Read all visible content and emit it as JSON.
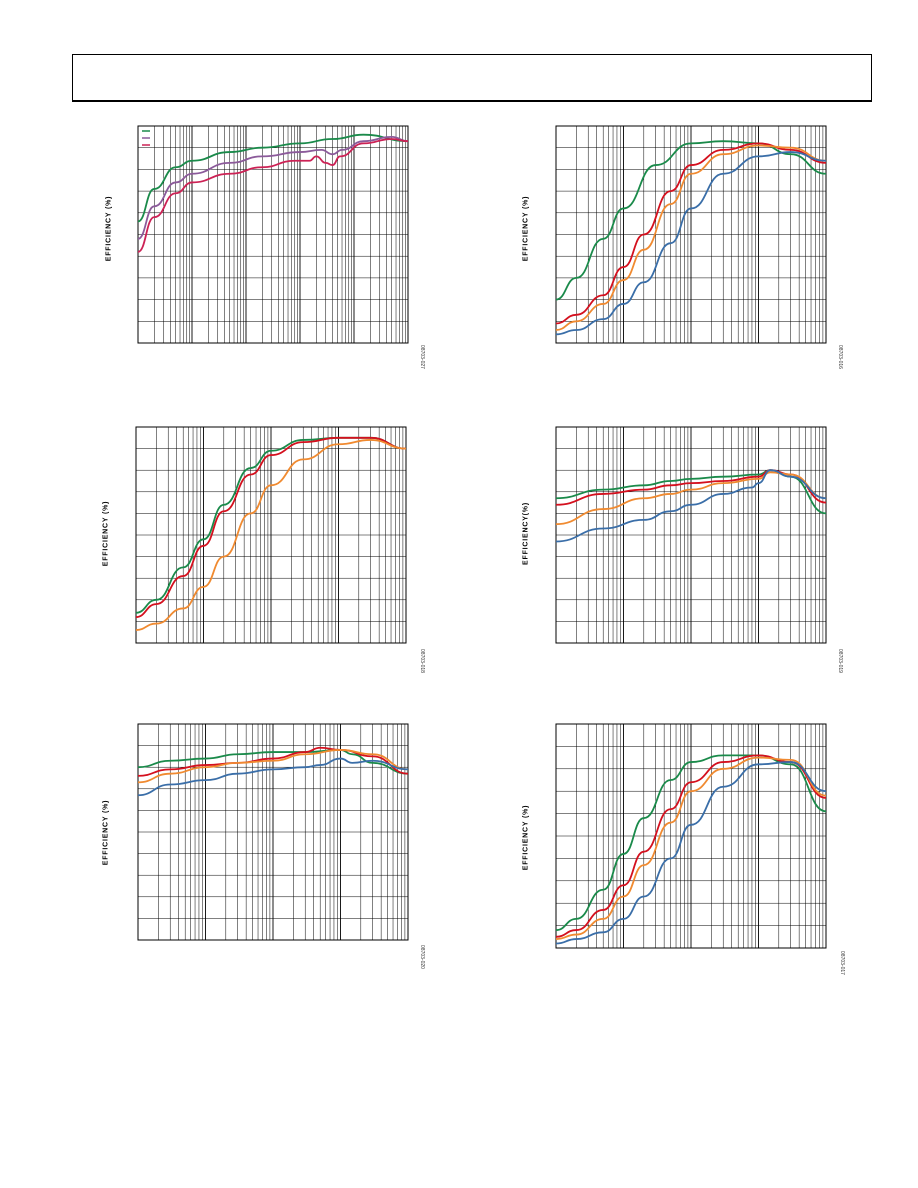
{
  "page": {
    "header_text": ""
  },
  "colors": {
    "green": "#1a8a4a",
    "purple": "#8b5a9a",
    "crimson": "#cc2255",
    "red": "#d4101e",
    "orange": "#f08a30",
    "blue": "#3a6ea8",
    "grid": "#000000"
  },
  "chart_data": [
    {
      "id": "c1",
      "type": "line",
      "ylabel": "EFFICIENCY (%)",
      "figcode": "08703-027",
      "xscale": "log",
      "xlim": [
        0.01,
        1000
      ],
      "ylim": [
        0,
        100
      ],
      "legend_position": "top-left",
      "series": [
        {
          "color": "green",
          "points": [
            [
              0.01,
              56
            ],
            [
              0.02,
              71
            ],
            [
              0.05,
              81
            ],
            [
              0.1,
              84
            ],
            [
              0.5,
              88
            ],
            [
              2,
              90
            ],
            [
              10,
              92
            ],
            [
              40,
              94
            ],
            [
              150,
              96
            ],
            [
              1000,
              93
            ]
          ]
        },
        {
          "color": "purple",
          "points": [
            [
              0.01,
              48
            ],
            [
              0.02,
              63
            ],
            [
              0.05,
              74
            ],
            [
              0.1,
              78
            ],
            [
              0.5,
              83
            ],
            [
              2,
              86
            ],
            [
              10,
              88
            ],
            [
              25,
              89
            ],
            [
              40,
              87
            ],
            [
              60,
              89
            ],
            [
              150,
              93
            ],
            [
              500,
              95
            ],
            [
              1000,
              93
            ]
          ]
        },
        {
          "color": "crimson",
          "points": [
            [
              0.01,
              42
            ],
            [
              0.02,
              58
            ],
            [
              0.05,
              69
            ],
            [
              0.1,
              74
            ],
            [
              0.5,
              78
            ],
            [
              2,
              81
            ],
            [
              8,
              84
            ],
            [
              15,
              84
            ],
            [
              20,
              86
            ],
            [
              30,
              83
            ],
            [
              40,
              82
            ],
            [
              55,
              86
            ],
            [
              150,
              92
            ],
            [
              500,
              94
            ],
            [
              1000,
              93
            ]
          ]
        }
      ],
      "annotations": []
    },
    {
      "id": "c2",
      "type": "line",
      "ylabel": "EFFICIENCY (%)",
      "figcode": "08703-016",
      "xscale": "log",
      "xlim": [
        0.001,
        10
      ],
      "ylim": [
        0,
        100
      ],
      "series": [
        {
          "color": "green",
          "points": [
            [
              0.001,
              20
            ],
            [
              0.002,
              30
            ],
            [
              0.005,
              48
            ],
            [
              0.01,
              62
            ],
            [
              0.03,
              82
            ],
            [
              0.1,
              92
            ],
            [
              0.3,
              93
            ],
            [
              1,
              92
            ],
            [
              3,
              87
            ],
            [
              10,
              78
            ]
          ]
        },
        {
          "color": "red",
          "points": [
            [
              0.001,
              9
            ],
            [
              0.002,
              13
            ],
            [
              0.005,
              22
            ],
            [
              0.01,
              35
            ],
            [
              0.02,
              50
            ],
            [
              0.05,
              70
            ],
            [
              0.1,
              82
            ],
            [
              0.3,
              89
            ],
            [
              1,
              92
            ],
            [
              3,
              89
            ],
            [
              10,
              83
            ]
          ]
        },
        {
          "color": "orange",
          "points": [
            [
              0.001,
              6
            ],
            [
              0.002,
              10
            ],
            [
              0.005,
              18
            ],
            [
              0.01,
              29
            ],
            [
              0.02,
              43
            ],
            [
              0.05,
              64
            ],
            [
              0.1,
              78
            ],
            [
              0.3,
              87
            ],
            [
              1,
              91
            ],
            [
              3,
              90
            ],
            [
              10,
              84
            ]
          ]
        },
        {
          "color": "blue",
          "points": [
            [
              0.001,
              4
            ],
            [
              0.002,
              6
            ],
            [
              0.005,
              11
            ],
            [
              0.01,
              18
            ],
            [
              0.02,
              28
            ],
            [
              0.05,
              46
            ],
            [
              0.1,
              62
            ],
            [
              0.3,
              78
            ],
            [
              1,
              86
            ],
            [
              3,
              88
            ],
            [
              10,
              84
            ]
          ]
        }
      ],
      "annotations": []
    },
    {
      "id": "c3",
      "type": "line",
      "ylabel": "EFFICIENCY (%)",
      "figcode": "08703-018",
      "xscale": "log",
      "xlim": [
        0.001,
        10
      ],
      "ylim": [
        0,
        100
      ],
      "series": [
        {
          "color": "green",
          "points": [
            [
              0.001,
              14
            ],
            [
              0.002,
              20
            ],
            [
              0.005,
              35
            ],
            [
              0.01,
              48
            ],
            [
              0.02,
              64
            ],
            [
              0.05,
              81
            ],
            [
              0.1,
              89
            ],
            [
              0.3,
              94
            ],
            [
              1,
              95
            ],
            [
              3,
              95
            ],
            [
              10,
              90
            ]
          ]
        },
        {
          "color": "red",
          "points": [
            [
              0.001,
              12
            ],
            [
              0.002,
              18
            ],
            [
              0.005,
              31
            ],
            [
              0.01,
              45
            ],
            [
              0.02,
              61
            ],
            [
              0.05,
              78
            ],
            [
              0.1,
              87
            ],
            [
              0.3,
              93
            ],
            [
              1,
              95
            ],
            [
              3,
              95
            ],
            [
              10,
              90
            ]
          ]
        },
        {
          "color": "orange",
          "points": [
            [
              0.001,
              6
            ],
            [
              0.002,
              9
            ],
            [
              0.005,
              16
            ],
            [
              0.01,
              26
            ],
            [
              0.02,
              40
            ],
            [
              0.05,
              60
            ],
            [
              0.1,
              73
            ],
            [
              0.3,
              85
            ],
            [
              1,
              92
            ],
            [
              3,
              94
            ],
            [
              10,
              90
            ]
          ]
        }
      ],
      "annotations": []
    },
    {
      "id": "c4",
      "type": "line",
      "ylabel": "EFFICIENCY(%)",
      "figcode": "08703-019",
      "xscale": "log",
      "xlim": [
        0.001,
        10
      ],
      "ylim": [
        0,
        100
      ],
      "series": [
        {
          "color": "green",
          "points": [
            [
              0.001,
              67
            ],
            [
              0.005,
              71
            ],
            [
              0.02,
              73
            ],
            [
              0.05,
              75
            ],
            [
              0.1,
              76
            ],
            [
              0.3,
              77
            ],
            [
              1,
              78
            ],
            [
              1.5,
              80
            ],
            [
              3,
              77
            ],
            [
              10,
              60
            ]
          ]
        },
        {
          "color": "red",
          "points": [
            [
              0.001,
              64
            ],
            [
              0.005,
              69
            ],
            [
              0.02,
              71
            ],
            [
              0.05,
              73
            ],
            [
              0.1,
              74
            ],
            [
              0.3,
              75
            ],
            [
              1,
              77
            ],
            [
              1.5,
              80
            ],
            [
              3,
              78
            ],
            [
              10,
              65
            ]
          ]
        },
        {
          "color": "orange",
          "points": [
            [
              0.001,
              55
            ],
            [
              0.005,
              62
            ],
            [
              0.02,
              67
            ],
            [
              0.05,
              69
            ],
            [
              0.1,
              71
            ],
            [
              0.3,
              74
            ],
            [
              1,
              76
            ],
            [
              1.5,
              79
            ],
            [
              3,
              78
            ],
            [
              10,
              67
            ]
          ]
        },
        {
          "color": "blue",
          "points": [
            [
              0.001,
              47
            ],
            [
              0.005,
              53
            ],
            [
              0.02,
              57
            ],
            [
              0.05,
              61
            ],
            [
              0.1,
              64
            ],
            [
              0.3,
              69
            ],
            [
              0.8,
              72
            ],
            [
              1,
              74
            ],
            [
              1.5,
              80
            ],
            [
              3,
              77
            ],
            [
              10,
              67
            ]
          ]
        }
      ],
      "annotations": []
    },
    {
      "id": "c5",
      "type": "line",
      "ylabel": "EFFICIENCY (%)",
      "figcode": "08703-020",
      "xscale": "log",
      "xlim": [
        0.001,
        10
      ],
      "ylim": [
        0,
        100
      ],
      "series": [
        {
          "color": "green",
          "points": [
            [
              0.001,
              80
            ],
            [
              0.003,
              83
            ],
            [
              0.01,
              84
            ],
            [
              0.03,
              86
            ],
            [
              0.1,
              87
            ],
            [
              0.3,
              87
            ],
            [
              1,
              88
            ],
            [
              1.5,
              86
            ],
            [
              3,
              82
            ],
            [
              10,
              77
            ]
          ]
        },
        {
          "color": "red",
          "points": [
            [
              0.001,
              76
            ],
            [
              0.003,
              79
            ],
            [
              0.01,
              81
            ],
            [
              0.03,
              82
            ],
            [
              0.1,
              84
            ],
            [
              0.3,
              87
            ],
            [
              0.5,
              89
            ],
            [
              1,
              88
            ],
            [
              3,
              85
            ],
            [
              10,
              77
            ]
          ]
        },
        {
          "color": "orange",
          "points": [
            [
              0.001,
              73
            ],
            [
              0.003,
              77
            ],
            [
              0.01,
              80
            ],
            [
              0.03,
              82
            ],
            [
              0.1,
              83
            ],
            [
              0.3,
              86
            ],
            [
              1,
              88
            ],
            [
              3,
              86
            ],
            [
              10,
              79
            ]
          ]
        },
        {
          "color": "blue",
          "points": [
            [
              0.001,
              67
            ],
            [
              0.003,
              72
            ],
            [
              0.01,
              74
            ],
            [
              0.03,
              77
            ],
            [
              0.1,
              79
            ],
            [
              0.3,
              80
            ],
            [
              0.5,
              81
            ],
            [
              1,
              84
            ],
            [
              1.5,
              82
            ],
            [
              3,
              83
            ],
            [
              10,
              79
            ]
          ]
        }
      ],
      "annotations": []
    },
    {
      "id": "c6",
      "type": "line",
      "ylabel": "EFFICIENCY (%)",
      "figcode": "08703-017",
      "xscale": "log",
      "xlim": [
        0.001,
        10
      ],
      "ylim": [
        0,
        100
      ],
      "series": [
        {
          "color": "green",
          "points": [
            [
              0.001,
              8
            ],
            [
              0.002,
              13
            ],
            [
              0.005,
              26
            ],
            [
              0.01,
              42
            ],
            [
              0.02,
              58
            ],
            [
              0.05,
              75
            ],
            [
              0.1,
              83
            ],
            [
              0.3,
              86
            ],
            [
              1,
              86
            ],
            [
              3,
              82
            ],
            [
              10,
              61
            ]
          ]
        },
        {
          "color": "red",
          "points": [
            [
              0.001,
              5
            ],
            [
              0.002,
              8
            ],
            [
              0.005,
              17
            ],
            [
              0.01,
              28
            ],
            [
              0.02,
              43
            ],
            [
              0.05,
              62
            ],
            [
              0.1,
              74
            ],
            [
              0.3,
              83
            ],
            [
              1,
              86
            ],
            [
              3,
              83
            ],
            [
              10,
              67
            ]
          ]
        },
        {
          "color": "orange",
          "points": [
            [
              0.001,
              4
            ],
            [
              0.002,
              6
            ],
            [
              0.005,
              13
            ],
            [
              0.01,
              23
            ],
            [
              0.02,
              37
            ],
            [
              0.05,
              56
            ],
            [
              0.1,
              70
            ],
            [
              0.3,
              80
            ],
            [
              1,
              85
            ],
            [
              3,
              84
            ],
            [
              10,
              68
            ]
          ]
        },
        {
          "color": "blue",
          "points": [
            [
              0.001,
              2
            ],
            [
              0.002,
              4
            ],
            [
              0.005,
              7
            ],
            [
              0.01,
              13
            ],
            [
              0.02,
              23
            ],
            [
              0.05,
              40
            ],
            [
              0.1,
              55
            ],
            [
              0.3,
              72
            ],
            [
              1,
              82
            ],
            [
              3,
              83
            ],
            [
              10,
              70
            ]
          ]
        }
      ],
      "annotations": []
    }
  ]
}
